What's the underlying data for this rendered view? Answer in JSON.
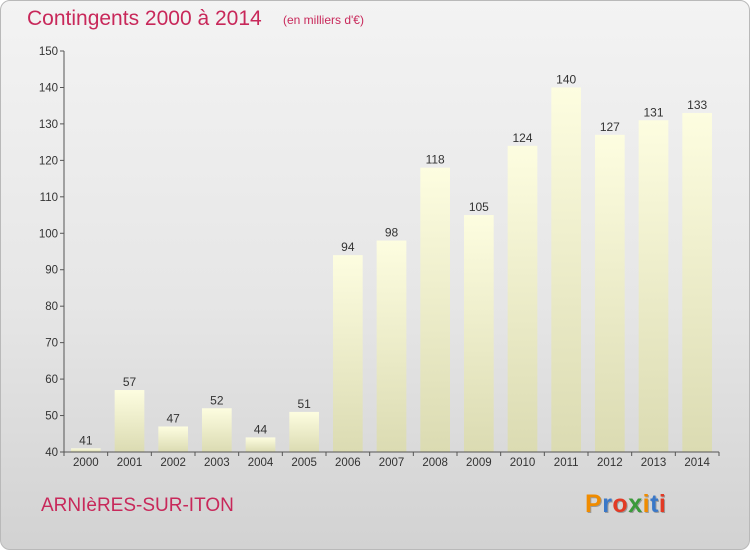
{
  "header": {
    "title": "Contingents 2000 à 2014",
    "subtitle": "(en milliers d'€)"
  },
  "footer": {
    "commune": "ARNIèRES-SUR-ITON",
    "logo": {
      "letters": [
        "P",
        "r",
        "o",
        "x",
        "i",
        "t",
        "i"
      ],
      "colors": [
        "#f08c00",
        "#3a78c8",
        "#e23a25",
        "#3a9a3a",
        "#f08c00",
        "#3a78c8",
        "#e23a25"
      ]
    }
  },
  "chart_data": {
    "type": "bar",
    "categories": [
      "2000",
      "2001",
      "2002",
      "2003",
      "2004",
      "2005",
      "2006",
      "2007",
      "2008",
      "2009",
      "2010",
      "2011",
      "2012",
      "2013",
      "2014"
    ],
    "values": [
      41,
      57,
      47,
      52,
      44,
      51,
      94,
      98,
      118,
      105,
      124,
      140,
      127,
      131,
      133
    ],
    "ylim": [
      40,
      150
    ],
    "yticks": [
      40,
      50,
      60,
      70,
      80,
      90,
      100,
      110,
      120,
      130,
      140,
      150
    ],
    "data_labels": true,
    "grid": false,
    "colors": {
      "bar_top": "#fdfde0",
      "bar_bottom": "#dbdbb2",
      "axis": "#555555"
    }
  }
}
